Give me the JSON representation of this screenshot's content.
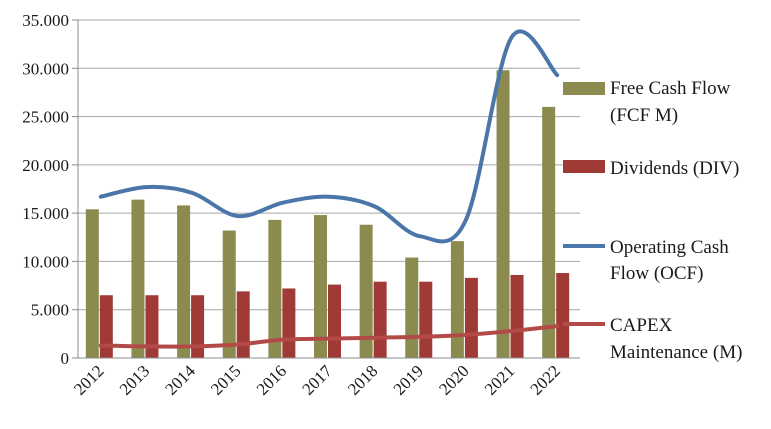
{
  "chart_data": {
    "type": "bar+line",
    "categories": [
      "2012",
      "2013",
      "2014",
      "2015",
      "2016",
      "2017",
      "2018",
      "2019",
      "2020",
      "2021",
      "2022"
    ],
    "ylim": [
      0,
      35000
    ],
    "yticks": [
      0,
      5000,
      10000,
      15000,
      20000,
      25000,
      30000,
      35000
    ],
    "ytick_labels": [
      "0",
      "5.000",
      "10.000",
      "15.000",
      "20.000",
      "25.000",
      "30.000",
      "35.000"
    ],
    "grid": true,
    "legend_position": "right",
    "series": [
      {
        "name": "Free Cash Flow (FCF M)",
        "legend_lines": [
          "Free Cash Flow",
          "(FCF M)"
        ],
        "kind": "bar",
        "color": "#8b8b4f",
        "values": [
          15400,
          16400,
          15800,
          13200,
          14300,
          14800,
          13800,
          10400,
          12100,
          29800,
          26000
        ]
      },
      {
        "name": "Dividends (DIV)",
        "legend_lines": [
          "Dividends (DIV)"
        ],
        "kind": "bar",
        "color": "#a03a37",
        "values": [
          6500,
          6500,
          6500,
          6900,
          7200,
          7600,
          7900,
          7900,
          8300,
          8600,
          8800
        ]
      },
      {
        "name": "Operating Cash Flow (OCF)",
        "legend_lines": [
          "Operating Cash",
          "Flow (OCF)"
        ],
        "kind": "line",
        "color": "#4a76aa",
        "values": [
          16700,
          17700,
          17100,
          14700,
          16100,
          16700,
          15700,
          12600,
          14300,
          33200,
          29300
        ]
      },
      {
        "name": "CAPEX Maintenance (M)",
        "legend_lines": [
          "CAPEX",
          "Maintenance (M)"
        ],
        "kind": "line",
        "color": "#b34a48",
        "values": [
          1300,
          1200,
          1200,
          1400,
          1900,
          2000,
          2100,
          2200,
          2400,
          2800,
          3300
        ]
      }
    ]
  }
}
